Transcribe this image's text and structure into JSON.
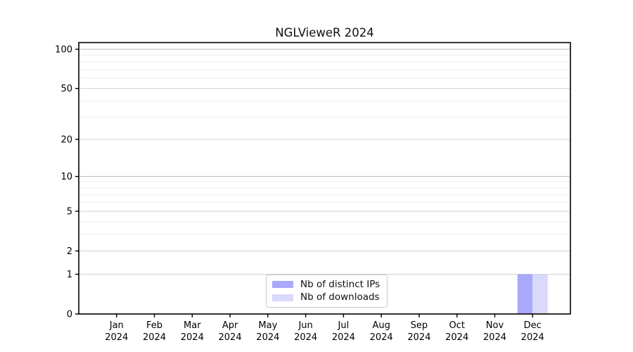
{
  "chart_data": {
    "type": "bar",
    "title": "NGLVieweR 2024",
    "categories": [
      "Jan",
      "Feb",
      "Mar",
      "Apr",
      "May",
      "Jun",
      "Jul",
      "Aug",
      "Sep",
      "Oct",
      "Nov",
      "Dec"
    ],
    "category_year": "2024",
    "series": [
      {
        "name": "Nb of distinct IPs",
        "color": "#a9a9fb",
        "values": [
          0,
          0,
          0,
          0,
          0,
          0,
          0,
          0,
          0,
          0,
          0,
          1
        ]
      },
      {
        "name": "Nb of downloads",
        "color": "#d9d9fb",
        "values": [
          0,
          0,
          0,
          0,
          0,
          0,
          0,
          0,
          0,
          0,
          0,
          1
        ]
      }
    ],
    "y_axis": {
      "scale": "log1p",
      "ticks": [
        0,
        1,
        2,
        5,
        10,
        20,
        50,
        100
      ],
      "minor_ticks": [
        3,
        4,
        6,
        7,
        8,
        9,
        30,
        40,
        60,
        70,
        80,
        90
      ],
      "emphasized_ticks": [
        10,
        100
      ],
      "ylim": [
        0,
        100
      ]
    },
    "xlabel": "",
    "ylabel": "",
    "grid": true,
    "legend_position": "lower center",
    "colors": {
      "axis": "#000000",
      "grid_major": "#d2d2d2",
      "grid_minor": "#ededed",
      "grid_decade": "#b9b9b9",
      "background": "#ffffff"
    }
  }
}
